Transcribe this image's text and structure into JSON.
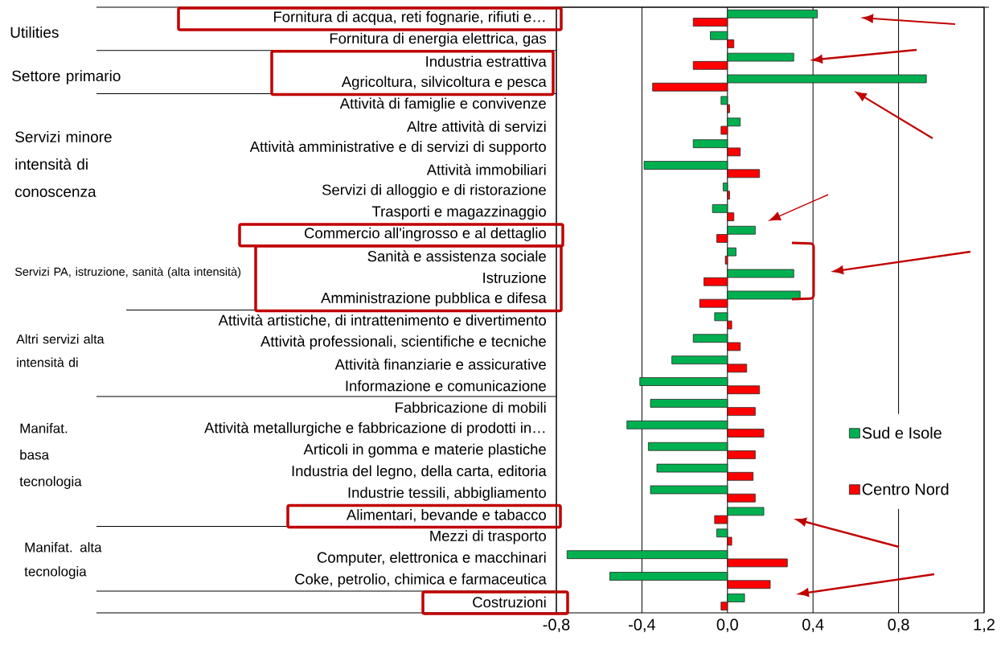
{
  "chart_data": {
    "type": "bar",
    "orientation": "horizontal",
    "categories": [
      "Fornitura di acqua, reti fognarie, rifiuti e…",
      "Fornitura di energia elettrica, gas",
      "Industria estrattiva",
      "Agricoltura, silvicoltura e pesca",
      "Attività di famiglie e convivenze",
      "Altre attività di servizi",
      "Attività amministrative e di servizi di supporto",
      "Attività immobiliari",
      "Servizi di alloggio e di ristorazione",
      "Trasporti e magazzinaggio",
      "Commercio all'ingrosso e al dettaglio",
      "Sanità e assistenza sociale",
      "Istruzione",
      "Amministrazione pubblica e difesa",
      "Attività artistiche, di intrattenimento e divertimento",
      "Attività professionali, scientifiche e tecniche",
      "Attività finanziarie e assicurative",
      "Informazione e comunicazione",
      "Fabbricazione di mobili",
      "Attività metallurgiche e fabbricazione di prodotti in…",
      "Articoli in gomma e materie plastiche",
      "Industria del legno, della carta, editoria",
      "Industrie tessili, abbigliamento",
      "Alimentari, bevande e tabacco",
      "Mezzi di trasporto",
      "Computer, elettronica e macchinari",
      "Coke, petrolio, chimica e farmaceutica",
      "Costruzioni"
    ],
    "series": [
      {
        "name": "Sud e Isole",
        "color": "#00b050",
        "values": [
          0.42,
          -0.08,
          0.31,
          0.93,
          -0.03,
          0.06,
          -0.16,
          -0.39,
          -0.02,
          -0.07,
          0.13,
          0.04,
          0.31,
          0.34,
          -0.06,
          -0.16,
          -0.26,
          -0.41,
          -0.36,
          -0.47,
          -0.37,
          -0.33,
          -0.36,
          0.17,
          -0.05,
          -0.75,
          -0.55,
          0.08
        ]
      },
      {
        "name": "Centro Nord",
        "color": "#ff0000",
        "values": [
          -0.16,
          0.03,
          -0.16,
          -0.35,
          0.01,
          -0.03,
          0.06,
          0.15,
          0.01,
          0.03,
          -0.05,
          -0.01,
          -0.11,
          -0.13,
          0.02,
          0.06,
          0.09,
          0.15,
          0.13,
          0.17,
          0.13,
          0.12,
          0.13,
          -0.06,
          0.02,
          0.28,
          0.2,
          -0.03
        ]
      }
    ],
    "xlim": [
      -0.8,
      1.2
    ],
    "xticks": [
      {
        "value": -0.8,
        "label": "-0,8"
      },
      {
        "value": -0.4,
        "label": "-0,4"
      },
      {
        "value": 0,
        "label": "0,0"
      },
      {
        "value": 0.4,
        "label": "0,4"
      },
      {
        "value": 0.8,
        "label": "0,8"
      },
      {
        "value": 1.2,
        "label": "1,2"
      }
    ],
    "grid": "x",
    "legend": "right",
    "annotations": [
      "Utilities",
      "Settore primario",
      "Servizi minore intensità di conoscenza",
      "Servizi PA, istruzione, sanità (alta intensità)",
      "Altri servizi alta intensità di",
      "Manifat. basa tecnologia",
      "Manifat. alta tecnologia"
    ]
  }
}
